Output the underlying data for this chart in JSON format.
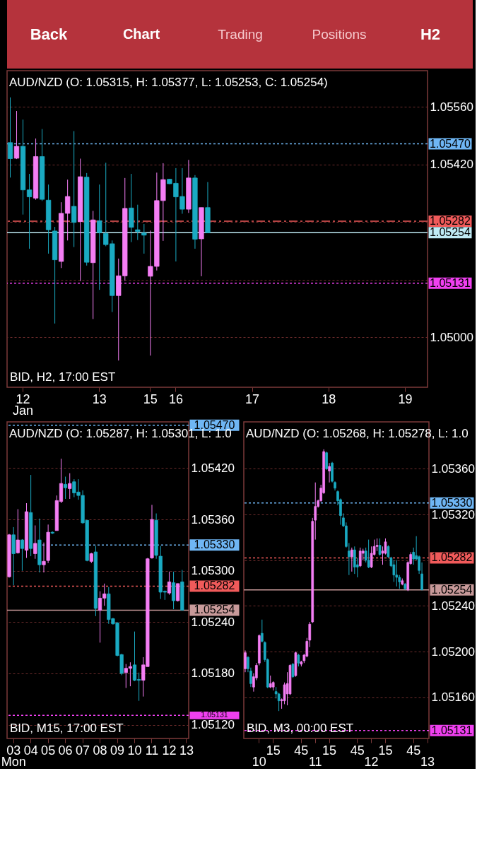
{
  "chart_data": [
    {
      "type": "other",
      "annotations": [
        "Back",
        "Chart",
        "Trading",
        "Positions",
        "H2"
      ]
    },
    {
      "type": "candlestick",
      "title": "AUD/NZD (O: 1.05315, H: 1.05377, L: 1.05253, C: 1.05254)",
      "annotations": [
        "BID, H2, 17:00 EST"
      ],
      "categories": [
        null,
        null,
        "12\nJan",
        null,
        null,
        null,
        null,
        null,
        null,
        null,
        null,
        null,
        null,
        null,
        "13",
        null,
        null,
        null,
        null,
        null,
        null,
        null,
        "15",
        null,
        null,
        null,
        "16",
        null,
        null,
        null,
        null,
        null,
        null,
        null,
        null,
        null,
        null,
        null,
        "17",
        null,
        null,
        null,
        null,
        null,
        null,
        null,
        null,
        null,
        null,
        null,
        "18",
        null,
        null,
        null,
        null,
        null,
        null,
        null,
        null,
        null,
        null,
        null,
        "19",
        null,
        null,
        null
      ],
      "ohlc": [
        [
          1.05473,
          1.05583,
          1.05388,
          1.05434
        ],
        [
          1.05435,
          1.0555,
          1.05433,
          1.05464
        ],
        [
          1.05464,
          1.05529,
          1.05298,
          1.05358
        ],
        [
          1.05358,
          1.05397,
          1.05215,
          1.05341
        ],
        [
          1.05338,
          1.05483,
          1.05334,
          1.05439
        ],
        [
          1.05439,
          1.05506,
          1.05331,
          1.05335
        ],
        [
          1.05333,
          1.05371,
          1.05203,
          1.05261
        ],
        [
          1.05258,
          1.05268,
          1.05033,
          1.05188
        ],
        [
          1.05184,
          1.05328,
          1.05168,
          1.05301
        ],
        [
          1.05301,
          1.05383,
          1.05235,
          1.05342
        ],
        [
          1.05318,
          1.05501,
          1.05219,
          1.05279
        ],
        [
          1.05281,
          1.05434,
          1.05136,
          1.0539
        ],
        [
          1.05389,
          1.05399,
          1.05174,
          1.05182
        ],
        [
          1.05181,
          1.05307,
          1.05044,
          1.05285
        ],
        [
          1.05283,
          1.05371,
          1.05115,
          1.05254
        ],
        [
          1.05252,
          1.05424,
          1.05221,
          1.05225
        ],
        [
          1.05227,
          1.05235,
          1.05061,
          1.05101
        ],
        [
          1.05101,
          1.05191,
          1.04943,
          1.05149
        ],
        [
          1.05149,
          1.05387,
          1.05137,
          1.05313
        ],
        [
          1.05314,
          1.05397,
          1.05231,
          1.05267
        ],
        [
          1.05261,
          1.05322,
          1.05236,
          1.05257
        ],
        [
          1.05253,
          1.05275,
          1.05203,
          1.05248
        ],
        [
          1.05148,
          1.05259,
          1.04955,
          1.05172
        ],
        [
          1.05172,
          1.054,
          1.05162,
          1.05332
        ],
        [
          1.05332,
          1.05423,
          1.05234,
          1.05383
        ],
        [
          1.05384,
          1.05385,
          1.05372,
          1.05373
        ],
        [
          1.05374,
          1.05411,
          1.05184,
          1.05341
        ],
        [
          1.05342,
          1.05411,
          1.053,
          1.05311
        ],
        [
          1.05311,
          1.05431,
          1.05302,
          1.05387
        ],
        [
          1.05387,
          1.05394,
          1.05215,
          1.05238
        ],
        [
          1.05239,
          1.05315,
          1.05148,
          1.05315
        ],
        [
          1.05315,
          1.05377,
          1.05253,
          1.05254
        ],
        null,
        null,
        null,
        null,
        null,
        null,
        null,
        null,
        null,
        null,
        null,
        null,
        null,
        null,
        null,
        null,
        null,
        null,
        null,
        null,
        null,
        null,
        null,
        null,
        null,
        null,
        null,
        null,
        null,
        null,
        null,
        null,
        null,
        null
      ],
      "colors": [
        "#1aaac2",
        "#f47ef4",
        "#1aaac2",
        "#1aaac2",
        "#f47ef4",
        "#1aaac2",
        "#1aaac2",
        "#1aaac2",
        "#f47ef4",
        "#f47ef4",
        "#1aaac2",
        "#f47ef4",
        "#1aaac2",
        "#f47ef4",
        "#1aaac2",
        "#1aaac2",
        "#1aaac2",
        "#f47ef4",
        "#f47ef4",
        "#1aaac2",
        "#1aaac2",
        "#1aaac2",
        "#f47ef4",
        "#f47ef4",
        "#f47ef4",
        "#1aaac2",
        "#1aaac2",
        "#1aaac2",
        "#f47ef4",
        "#1aaac2",
        "#f47ef4",
        "#1aaac2",
        null,
        null,
        null,
        null,
        null,
        null,
        null,
        null,
        null,
        null,
        null,
        null,
        null,
        null,
        null,
        null,
        null,
        null,
        null,
        null,
        null,
        null,
        null,
        null,
        null,
        null,
        null,
        null,
        null,
        null,
        null,
        null,
        null,
        null
      ],
      "ylim": [
        1.04878,
        1.05648
      ],
      "yticks": [
        {
          "value": 1.0556,
          "label": "1.05560"
        },
        {
          "value": 1.0542,
          "label": "1.05420"
        },
        {
          "value": 1.0528,
          "label": null
        },
        {
          "value": 1.0514,
          "label": null
        },
        {
          "value": 1.05,
          "label": "1.05000"
        }
      ],
      "grid": "y",
      "ref_lines": [
        {
          "axis": "y",
          "value": 1.0547,
          "label": "1.05470",
          "color": "#6fb6f4",
          "line_style": "dotted"
        },
        {
          "axis": "y",
          "value": 1.05282,
          "label": "1.05282",
          "color": "#f05a5a",
          "line_style": "dashed"
        },
        {
          "axis": "y",
          "value": 1.05254,
          "label": "1.05254",
          "color": "#bfeaf4",
          "line_style": "solid"
        },
        {
          "axis": "y",
          "value": 1.05131,
          "label": "1.05131",
          "color": "#f040f0",
          "line_style": "dotted"
        }
      ]
    },
    {
      "type": "candlestick",
      "title": "AUD/NZD (O: 1.05287, H: 1.05301, L: 1.0",
      "annotations": [
        "BID, M15, 17:00 EST"
      ],
      "categories": [
        null,
        "03\nMon",
        null,
        null,
        null,
        "04",
        null,
        null,
        null,
        "05",
        null,
        null,
        null,
        "06",
        null,
        null,
        null,
        "07",
        null,
        null,
        null,
        "08",
        null,
        null,
        null,
        "09",
        null,
        null,
        null,
        "10",
        null,
        null,
        null,
        "11",
        null,
        null,
        null,
        "12",
        null,
        null,
        null,
        "13"
      ],
      "ohlc": [
        [
          1.05293,
          1.05343,
          1.05292,
          1.05342
        ],
        [
          1.05342,
          1.05351,
          1.05283,
          1.0532
        ],
        [
          1.05321,
          1.05372,
          1.0532,
          1.05336
        ],
        [
          1.05336,
          1.05337,
          1.053,
          1.05326
        ],
        [
          1.05324,
          1.05379,
          1.05315,
          1.05369
        ],
        [
          1.05368,
          1.05412,
          1.05317,
          1.05326
        ],
        [
          1.0532,
          1.05353,
          1.05314,
          1.05332
        ],
        [
          1.05336,
          1.05361,
          1.05298,
          1.05307
        ],
        [
          1.05307,
          1.05333,
          1.05298,
          1.05311
        ],
        [
          1.05312,
          1.05354,
          1.05309,
          1.05345
        ],
        [
          1.05345,
          1.05346,
          1.05343,
          1.05344
        ],
        [
          1.05347,
          1.05388,
          1.05347,
          1.05382
        ],
        [
          1.05381,
          1.05431,
          1.05379,
          1.05402
        ],
        [
          1.05401,
          1.0541,
          1.05384,
          1.05397
        ],
        [
          1.05396,
          1.05414,
          1.05384,
          1.05402
        ],
        [
          1.05404,
          1.05407,
          1.05386,
          1.05391
        ],
        [
          1.05392,
          1.05407,
          1.05383,
          1.05388
        ],
        [
          1.05388,
          1.05394,
          1.05355,
          1.05356
        ],
        [
          1.05359,
          1.05359,
          1.05311,
          1.05312
        ],
        [
          1.05311,
          1.05321,
          1.05309,
          1.0532
        ],
        [
          1.05322,
          1.05329,
          1.05247,
          1.05256
        ],
        [
          1.05254,
          1.05276,
          1.05216,
          1.05268
        ],
        [
          1.05268,
          1.05285,
          1.05259,
          1.05273
        ],
        [
          1.05273,
          1.05281,
          1.05238,
          1.05243
        ],
        [
          1.05244,
          1.05245,
          1.05237,
          1.05238
        ],
        [
          1.05239,
          1.0524,
          1.052,
          1.05201
        ],
        [
          1.05202,
          1.05203,
          1.05178,
          1.0518
        ],
        [
          1.05181,
          1.05191,
          1.05163,
          1.05186
        ],
        [
          1.05186,
          1.05193,
          1.05165,
          1.05188
        ],
        [
          1.0519,
          1.05229,
          1.05171,
          1.05172
        ],
        [
          1.05173,
          1.05181,
          1.05148,
          1.05172
        ],
        [
          1.05172,
          1.05199,
          1.05153,
          1.0519
        ],
        [
          1.05188,
          1.05315,
          1.05188,
          1.05314
        ],
        [
          1.05315,
          1.05377,
          1.05314,
          1.0536
        ],
        [
          1.05359,
          1.05367,
          1.05314,
          1.05318
        ],
        [
          1.05317,
          1.05329,
          1.05267,
          1.05275
        ],
        [
          1.05276,
          1.05277,
          1.05266,
          1.05275
        ],
        [
          1.05274,
          1.05299,
          1.05272,
          1.05287
        ],
        [
          1.05286,
          1.05299,
          1.05255,
          1.05265
        ],
        [
          1.05265,
          1.05285,
          1.05264,
          1.05285
        ],
        [
          1.05287,
          1.05301,
          1.05254,
          1.05254
        ],
        null
      ],
      "colors": [
        "#f47ef4",
        "#1aaac2",
        "#f47ef4",
        "#1aaac2",
        "#f47ef4",
        "#1aaac2",
        "#f47ef4",
        "#1aaac2",
        "#f47ef4",
        "#f47ef4",
        "#1aaac2",
        "#f47ef4",
        "#f47ef4",
        "#1aaac2",
        "#f47ef4",
        "#1aaac2",
        "#1aaac2",
        "#1aaac2",
        "#1aaac2",
        "#f47ef4",
        "#1aaac2",
        "#f47ef4",
        "#f47ef4",
        "#1aaac2",
        "#1aaac2",
        "#1aaac2",
        "#1aaac2",
        "#f47ef4",
        "#f47ef4",
        "#1aaac2",
        "#1aaac2",
        "#f47ef4",
        "#f47ef4",
        "#f47ef4",
        "#1aaac2",
        "#1aaac2",
        "#1aaac2",
        "#f47ef4",
        "#1aaac2",
        "#f47ef4",
        "#1aaac2",
        null
      ],
      "ylim": [
        1.05104,
        1.05474
      ],
      "yticks": [
        {
          "value": 1.0542,
          "label": "1.05420"
        },
        {
          "value": 1.0536,
          "label": "1.05360"
        },
        {
          "value": 1.053,
          "label": "1.05300"
        },
        {
          "value": 1.0524,
          "label": "1.05240"
        },
        {
          "value": 1.0518,
          "label": "1.05180"
        },
        {
          "value": 1.0512,
          "label": "1.05120"
        }
      ],
      "grid": "y",
      "ref_lines": [
        {
          "axis": "y",
          "value": 1.0547,
          "label": "1.05470",
          "color": "#6fb6f4",
          "line_style": "dotted"
        },
        {
          "axis": "y",
          "value": 1.0533,
          "label": "1.05330",
          "color": "#6fb6f4",
          "line_style": "dotted"
        },
        {
          "axis": "y",
          "value": 1.05282,
          "label": "1.05282",
          "color": "#f05a5a",
          "line_style": "dotted"
        },
        {
          "axis": "y",
          "value": 1.05254,
          "label": "1.05254",
          "color": "#c89a9a",
          "line_style": "solid"
        },
        {
          "axis": "y",
          "value": 1.05131,
          "label": "1.05131",
          "color": "#f040f0",
          "line_style": "dotted"
        }
      ]
    },
    {
      "type": "candlestick",
      "title": "AUD/NZD (O: 1.05268, H: 1.05278, L: 1.0",
      "annotations": [
        "BID, M3, 00:00 EST"
      ],
      "categories": [
        null,
        null,
        null,
        null,
        null,
        "\n10",
        null,
        null,
        null,
        null,
        "15",
        null,
        null,
        null,
        null,
        null,
        null,
        null,
        null,
        null,
        "45",
        null,
        null,
        null,
        null,
        "\n11",
        null,
        null,
        null,
        null,
        "15",
        null,
        null,
        null,
        null,
        null,
        null,
        null,
        null,
        null,
        "45",
        null,
        null,
        null,
        null,
        "\n12",
        null,
        null,
        null,
        null,
        "15",
        null,
        null,
        null,
        null,
        null,
        null,
        null,
        null,
        null,
        "45",
        null,
        null,
        null,
        null,
        "\n13"
      ],
      "ohlc": [
        [
          1.05185,
          1.05201,
          1.05182,
          1.05199
        ],
        [
          1.05195,
          1.05196,
          1.05182,
          1.05185
        ],
        [
          1.05183,
          1.05186,
          1.05169,
          1.05172
        ],
        [
          1.05169,
          1.05181,
          1.05165,
          1.05178
        ],
        [
          1.05177,
          1.0519,
          1.05175,
          1.05188
        ],
        [
          1.0519,
          1.05215,
          1.05188,
          1.05214
        ],
        [
          1.05216,
          1.05228,
          1.05208,
          1.05209
        ],
        [
          1.05208,
          1.05209,
          1.05191,
          1.05193
        ],
        [
          1.05193,
          1.05194,
          1.05168,
          1.05169
        ],
        [
          1.05169,
          1.05179,
          1.05168,
          1.05172
        ],
        [
          1.05169,
          1.05174,
          1.05166,
          1.05173
        ],
        [
          1.05165,
          1.05169,
          1.05159,
          1.05163
        ],
        [
          1.05163,
          1.05164,
          1.05148,
          1.05157
        ],
        [
          1.05157,
          1.05159,
          1.0515,
          1.05158
        ],
        [
          1.05157,
          1.05173,
          1.05154,
          1.05171
        ],
        [
          1.05163,
          1.05182,
          1.05153,
          1.05172
        ],
        [
          1.05163,
          1.05189,
          1.05162,
          1.05188
        ],
        [
          1.05189,
          1.0519,
          1.05177,
          1.05178
        ],
        [
          1.05179,
          1.052,
          1.05178,
          1.05199
        ],
        [
          1.05197,
          1.05198,
          1.05187,
          1.0519
        ],
        [
          1.05189,
          1.05192,
          1.05187,
          1.05191
        ],
        [
          1.05192,
          1.05198,
          1.0519,
          1.05197
        ],
        [
          1.05196,
          1.05212,
          1.05195,
          1.05209
        ],
        [
          1.0521,
          1.05226,
          1.05204,
          1.05224
        ],
        [
          1.05226,
          1.05317,
          1.05225,
          1.05314
        ],
        [
          1.05315,
          1.05348,
          1.05298,
          1.05327
        ],
        [
          1.05327,
          1.05333,
          1.05326,
          1.05332
        ],
        [
          1.05332,
          1.05346,
          1.05331,
          1.05343
        ],
        [
          1.05339,
          1.05377,
          1.05338,
          1.05375
        ],
        [
          1.05374,
          1.05375,
          1.05359,
          1.0536
        ],
        [
          1.05358,
          1.05365,
          1.05348,
          1.05362
        ],
        [
          1.05365,
          1.05366,
          1.05348,
          1.05349
        ],
        [
          1.05348,
          1.05349,
          1.05341,
          1.05343
        ],
        [
          1.0534,
          1.05341,
          1.05328,
          1.05332
        ],
        [
          1.05333,
          1.05334,
          1.05311,
          1.05319
        ],
        [
          1.05317,
          1.05321,
          1.05309,
          1.0531
        ],
        [
          1.0531,
          1.05313,
          1.05291,
          1.05292
        ],
        [
          1.05288,
          1.05295,
          1.05267,
          1.05283
        ],
        [
          1.05283,
          1.05291,
          1.0527,
          1.05289
        ],
        [
          1.05289,
          1.05292,
          1.05268,
          1.05274
        ],
        [
          1.05276,
          1.05282,
          1.05265,
          1.05274
        ],
        [
          1.05275,
          1.05291,
          1.05274,
          1.05288
        ],
        [
          1.05286,
          1.0529,
          1.0528,
          1.05288
        ],
        [
          1.05288,
          1.05291,
          1.05278,
          1.0528
        ],
        [
          1.0528,
          1.05298,
          1.05273,
          1.05274
        ],
        [
          1.05274,
          1.05292,
          1.05273,
          1.05286
        ],
        [
          1.05285,
          1.05298,
          1.05284,
          1.05292
        ],
        [
          1.05292,
          1.05299,
          1.05288,
          1.05293
        ],
        [
          1.05293,
          1.05299,
          1.05284,
          1.05285
        ],
        [
          1.05286,
          1.05292,
          1.05276,
          1.05288
        ],
        [
          1.05286,
          1.05299,
          1.05285,
          1.05296
        ],
        [
          1.05292,
          1.05293,
          1.05282,
          1.05283
        ],
        [
          1.05282,
          1.05283,
          1.05274,
          1.05275
        ],
        [
          1.05276,
          1.0528,
          1.05261,
          1.05267
        ],
        [
          1.05267,
          1.0528,
          1.05257,
          1.05265
        ],
        [
          1.05265,
          1.05267,
          1.05255,
          1.05261
        ],
        [
          1.05259,
          1.05264,
          1.05258,
          1.05262
        ],
        [
          1.05259,
          1.0526,
          1.05254,
          1.05255
        ],
        [
          1.05254,
          1.05279,
          1.05253,
          1.05278
        ],
        [
          1.05277,
          1.05287,
          1.05276,
          1.05285
        ],
        [
          1.05287,
          1.05291,
          1.05276,
          1.05281
        ],
        [
          1.05284,
          1.05301,
          1.0528,
          1.05281
        ],
        [
          1.05283,
          1.05284,
          1.05268,
          1.05271
        ],
        [
          1.05268,
          1.05278,
          1.05254,
          1.05254
        ],
        null,
        null
      ],
      "colors": [
        "#f47ef4",
        "#1aaac2",
        "#1aaac2",
        "#f47ef4",
        "#f47ef4",
        "#f47ef4",
        "#1aaac2",
        "#1aaac2",
        "#1aaac2",
        "#f47ef4",
        "#f47ef4",
        "#1aaac2",
        "#1aaac2",
        "#f47ef4",
        "#f47ef4",
        "#f47ef4",
        "#f47ef4",
        "#1aaac2",
        "#f47ef4",
        "#1aaac2",
        "#f47ef4",
        "#f47ef4",
        "#f47ef4",
        "#f47ef4",
        "#f47ef4",
        "#f47ef4",
        "#f47ef4",
        "#f47ef4",
        "#f47ef4",
        "#1aaac2",
        "#f47ef4",
        "#1aaac2",
        "#1aaac2",
        "#1aaac2",
        "#1aaac2",
        "#1aaac2",
        "#1aaac2",
        "#1aaac2",
        "#f47ef4",
        "#1aaac2",
        "#1aaac2",
        "#f47ef4",
        "#f47ef4",
        "#1aaac2",
        "#1aaac2",
        "#f47ef4",
        "#f47ef4",
        "#f47ef4",
        "#1aaac2",
        "#f47ef4",
        "#f47ef4",
        "#1aaac2",
        "#1aaac2",
        "#1aaac2",
        "#1aaac2",
        "#1aaac2",
        "#f47ef4",
        "#1aaac2",
        "#f47ef4",
        "#f47ef4",
        "#1aaac2",
        "#1aaac2",
        "#1aaac2",
        "#1aaac2",
        null,
        null
      ],
      "ylim": [
        1.05124,
        1.05401
      ],
      "yticks": [
        {
          "value": 1.0536,
          "label": "1.05360"
        },
        {
          "value": 1.0532,
          "label": "1.05320"
        },
        {
          "value": 1.0528,
          "label": null
        },
        {
          "value": 1.0524,
          "label": "1.05240"
        },
        {
          "value": 1.052,
          "label": "1.05200"
        },
        {
          "value": 1.0516,
          "label": "1.05160"
        }
      ],
      "grid": "y",
      "ref_lines": [
        {
          "axis": "y",
          "value": 1.0533,
          "label": "1.05330",
          "color": "#6fb6f4",
          "line_style": "dotted"
        },
        {
          "axis": "y",
          "value": 1.05282,
          "label": "1.05282",
          "color": "#f05a5a",
          "line_style": "dotted"
        },
        {
          "axis": "y",
          "value": 1.05254,
          "label": "1.05254",
          "color": "#c89a9a",
          "line_style": "solid"
        },
        {
          "axis": "y",
          "value": 1.05131,
          "label": "1.05131",
          "color": "#f040f0",
          "line_style": "dotted"
        }
      ]
    }
  ]
}
